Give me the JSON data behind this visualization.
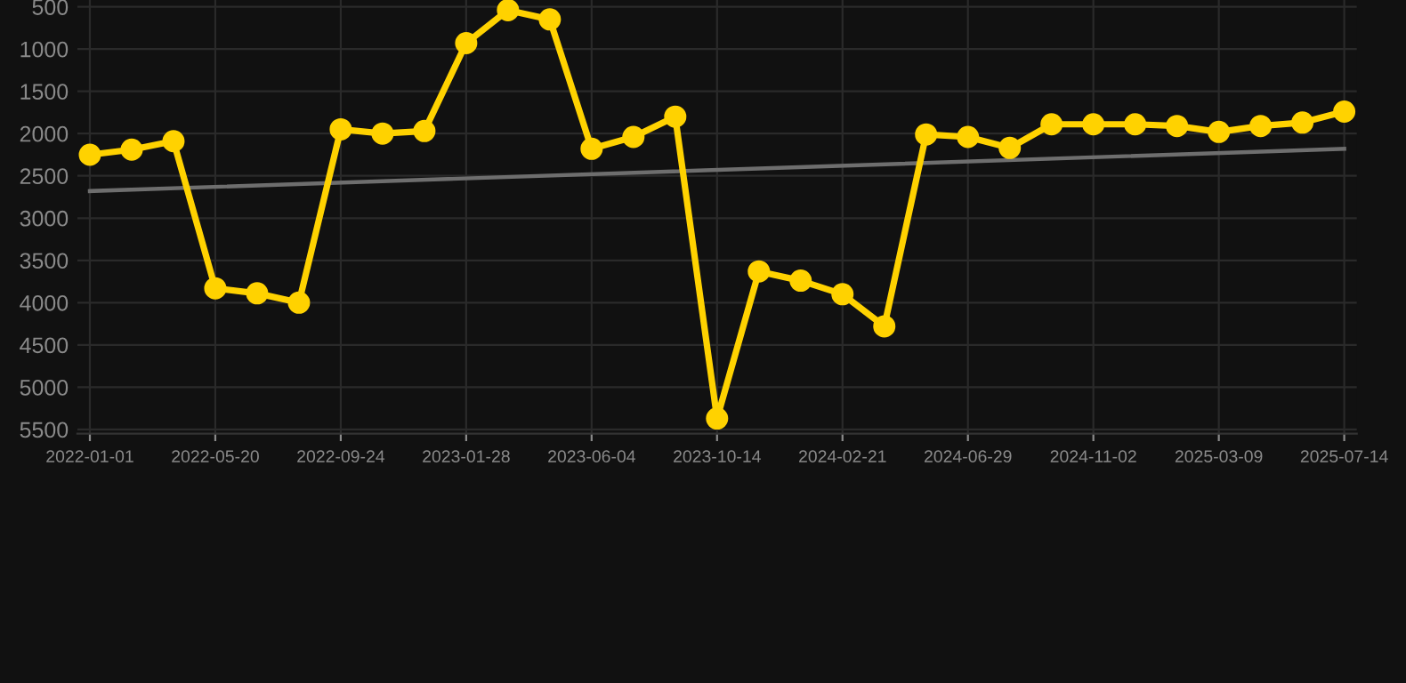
{
  "chart_data": {
    "type": "line",
    "categories": [
      "2022-01-01",
      null,
      null,
      "2022-05-20",
      null,
      null,
      "2022-09-24",
      null,
      null,
      "2023-01-28",
      null,
      null,
      "2023-06-04",
      null,
      null,
      "2023-10-14",
      null,
      null,
      "2024-02-21",
      null,
      null,
      "2024-06-29",
      null,
      null,
      "2024-11-02",
      null,
      null,
      "2025-03-09",
      null,
      null,
      "2025-07-14"
    ],
    "series": [
      {
        "color": "#ffd200",
        "marker": "circle",
        "values": [
          2250,
          2190,
          2090,
          3830,
          3890,
          4000,
          1950,
          2000,
          1970,
          930,
          540,
          650,
          2180,
          2040,
          1800,
          5370,
          3630,
          3740,
          3900,
          4280,
          2010,
          2040,
          2170,
          1890,
          1890,
          1890,
          1910,
          1980,
          1910,
          1870,
          1740
        ]
      },
      {
        "color": "#6e6e6e",
        "marker": "none",
        "values": [
          2680,
          null,
          null,
          null,
          null,
          null,
          null,
          null,
          null,
          null,
          null,
          null,
          null,
          null,
          null,
          null,
          null,
          null,
          null,
          null,
          null,
          null,
          null,
          null,
          null,
          null,
          null,
          null,
          null,
          null,
          2180
        ]
      }
    ],
    "ylim": [
      5550,
      420
    ],
    "yticks": [
      500,
      1000,
      1500,
      2000,
      2500,
      3000,
      3500,
      4000,
      4500,
      5000,
      5500
    ],
    "grid": true,
    "legend": false
  }
}
